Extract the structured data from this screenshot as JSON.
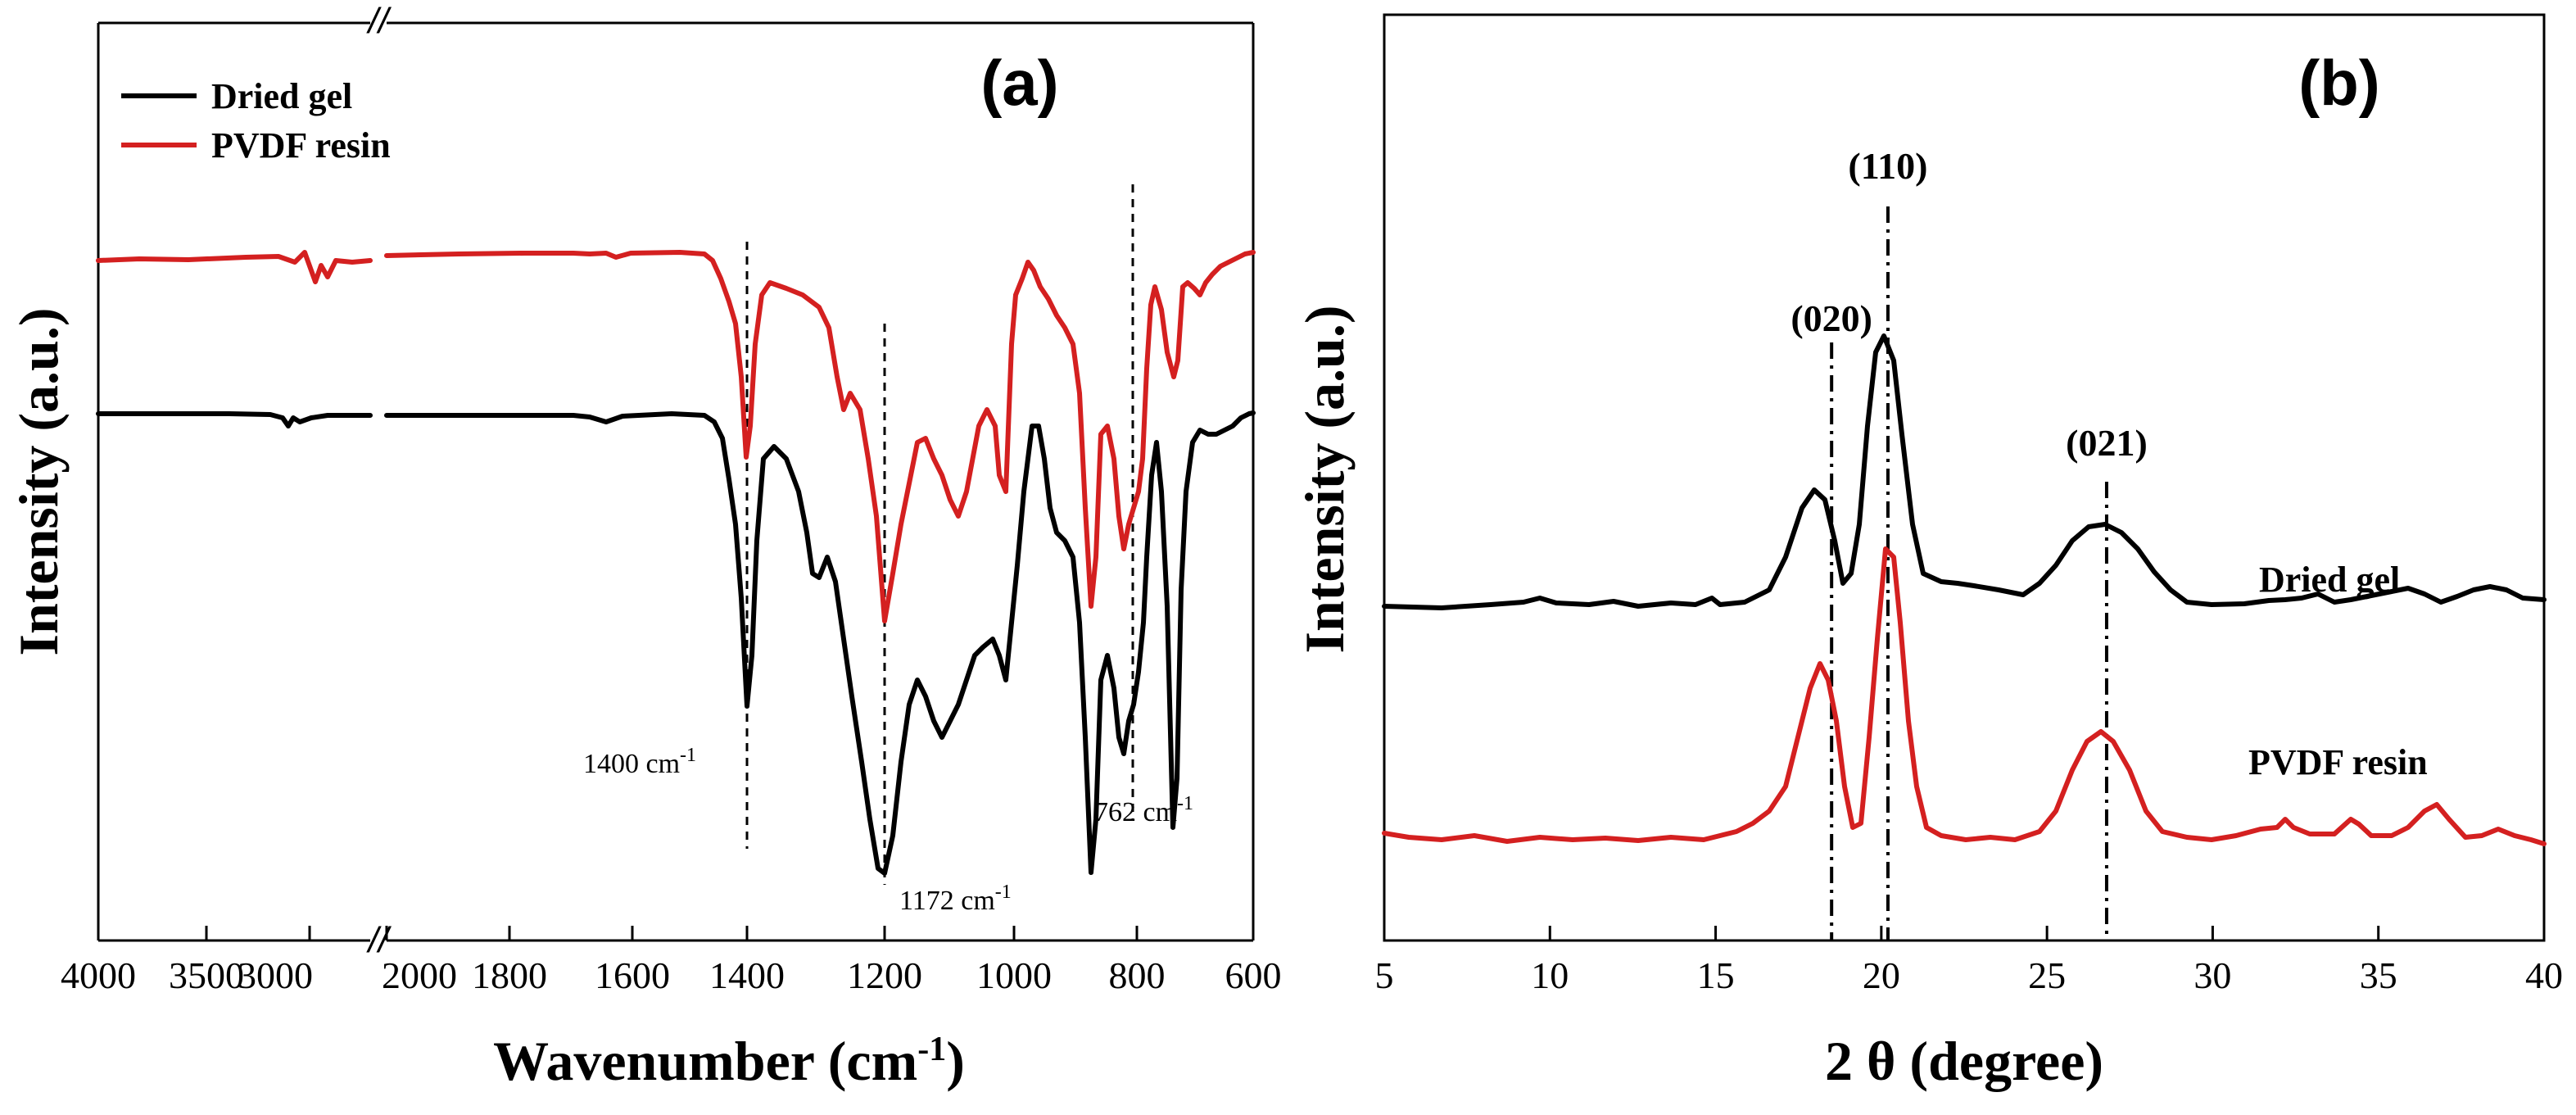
{
  "chart_data": [
    {
      "panel": "(a)",
      "type": "line",
      "xlabel": "Wavenumber (cm",
      "xlabel_sup": "-1",
      "xlabel_close": ")",
      "ylabel": "Intensity (a.u.)",
      "x_ticks_left": [
        "4000",
        "3500",
        "3000"
      ],
      "x_ticks_right": [
        "2000",
        "1800",
        "1600",
        "1400",
        "1200",
        "1000",
        "800",
        "600"
      ],
      "axis_break_mark": "//",
      "annotations": [
        {
          "text": "1400 cm",
          "sup": "-1",
          "x": 1400
        },
        {
          "text": "1172 cm",
          "sup": "-1",
          "x": 1172
        },
        {
          "text": "762 cm",
          "sup": "-1",
          "x": 762
        }
      ],
      "series": [
        {
          "name": "Dried gel",
          "color": "#000000"
        },
        {
          "name": "PVDF resin",
          "color": "#d42020"
        }
      ]
    },
    {
      "panel": "(b)",
      "type": "line",
      "xlabel": "2 θ (degree)",
      "ylabel": "Intensity (a.u.)",
      "xlim": [
        5,
        40
      ],
      "x_ticks": [
        "5",
        "10",
        "15",
        "20",
        "25",
        "30",
        "35",
        "40"
      ],
      "peaks": [
        {
          "label": "(020)",
          "x": 18.5
        },
        {
          "label": "(110)",
          "x": 20.2
        },
        {
          "label": "(021)",
          "x": 26.8
        }
      ],
      "series": [
        {
          "name": "Dried gel",
          "color": "#000000"
        },
        {
          "name": "PVDF resin",
          "color": "#d42020"
        }
      ]
    }
  ]
}
